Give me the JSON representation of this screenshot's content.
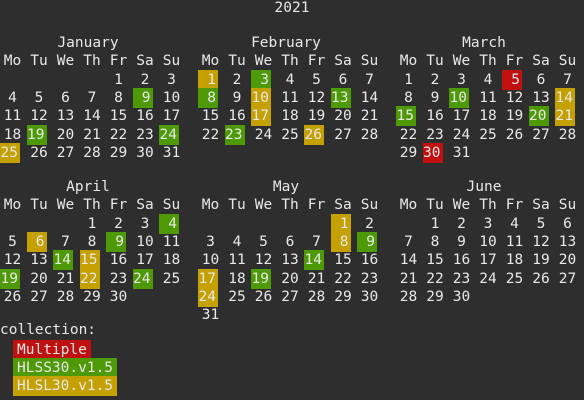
{
  "year": "2021",
  "weekdays": [
    "Mo",
    "Tu",
    "We",
    "Th",
    "Fr",
    "Sa",
    "Su"
  ],
  "colors": {
    "Multiple": "#c01010",
    "HLSS30.v1.5": "#4e9a06",
    "HLSL30.v1.5": "#c4a000"
  },
  "months": [
    {
      "name": "January",
      "start": 4,
      "days": 31,
      "hl": {
        "9": "HLSS30.v1.5",
        "19": "HLSS30.v1.5",
        "24": "HLSS30.v1.5",
        "25": "HLSL30.v1.5"
      }
    },
    {
      "name": "February",
      "start": 0,
      "days": 28,
      "hl": {
        "1": "HLSL30.v1.5",
        "3": "HLSS30.v1.5",
        "8": "HLSS30.v1.5",
        "10": "HLSL30.v1.5",
        "13": "HLSS30.v1.5",
        "17": "HLSL30.v1.5",
        "23": "HLSS30.v1.5",
        "26": "HLSL30.v1.5"
      }
    },
    {
      "name": "March",
      "start": 0,
      "days": 31,
      "hl": {
        "5": "Multiple",
        "10": "HLSS30.v1.5",
        "14": "HLSL30.v1.5",
        "15": "HLSS30.v1.5",
        "20": "HLSS30.v1.5",
        "21": "HLSL30.v1.5",
        "30": "Multiple"
      }
    },
    {
      "name": "April",
      "start": 3,
      "days": 30,
      "hl": {
        "4": "HLSS30.v1.5",
        "6": "HLSL30.v1.5",
        "9": "HLSS30.v1.5",
        "14": "HLSS30.v1.5",
        "15": "HLSL30.v1.5",
        "19": "HLSS30.v1.5",
        "22": "HLSL30.v1.5",
        "24": "HLSS30.v1.5"
      }
    },
    {
      "name": "May",
      "start": 5,
      "days": 31,
      "hl": {
        "1": "HLSL30.v1.5",
        "8": "HLSL30.v1.5",
        "9": "HLSS30.v1.5",
        "14": "HLSS30.v1.5",
        "17": "HLSL30.v1.5",
        "19": "HLSS30.v1.5",
        "24": "HLSL30.v1.5"
      }
    },
    {
      "name": "June",
      "start": 1,
      "days": 30,
      "hl": {}
    }
  ],
  "legend": {
    "title": "collection:",
    "items": [
      "Multiple",
      "HLSS30.v1.5",
      "HLSL30.v1.5"
    ]
  }
}
